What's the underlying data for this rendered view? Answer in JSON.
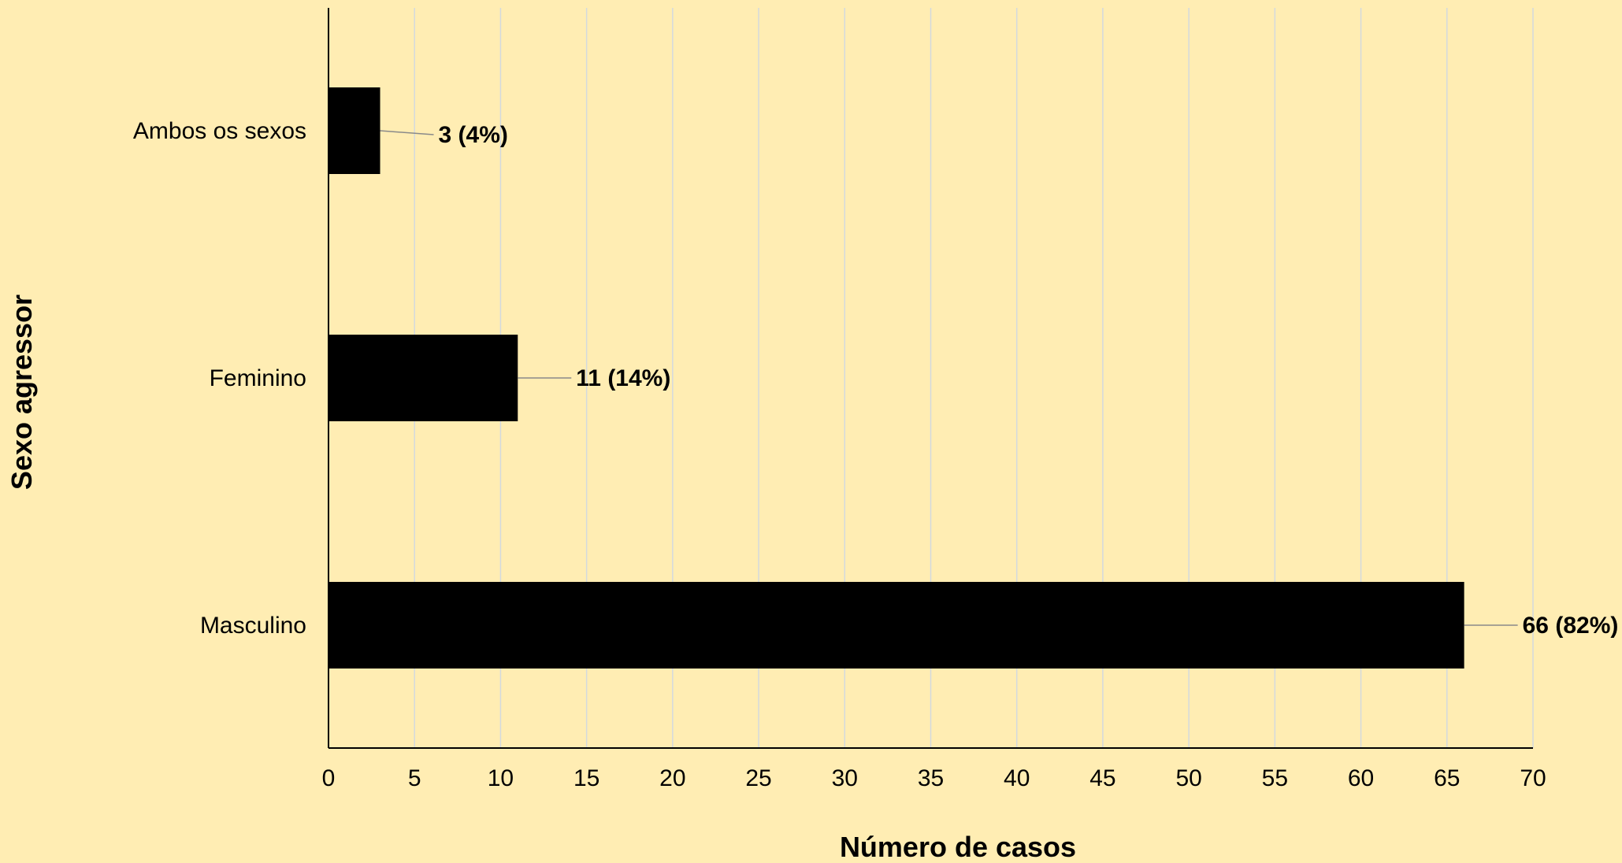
{
  "chart_data": {
    "type": "bar",
    "orientation": "horizontal",
    "title": "",
    "xlabel": "Número de casos",
    "ylabel": "Sexo agressor",
    "categories": [
      "Ambos os sexos",
      "Feminino",
      "Masculino"
    ],
    "values": [
      3,
      11,
      66
    ],
    "data_labels": [
      "3 (4%)",
      "11 (14%)",
      "66 (82%)"
    ],
    "xlim": [
      0,
      70
    ],
    "x_ticks": [
      0,
      5,
      10,
      15,
      20,
      25,
      30,
      35,
      40,
      45,
      50,
      55,
      60,
      65,
      70
    ],
    "grid": "vertical",
    "legend": "none"
  },
  "colors": {
    "background": "#FFEDB3",
    "bar": "#000000",
    "grid": "#D3D9DE",
    "axis": "#000000",
    "leader": "#8A8A8A"
  }
}
